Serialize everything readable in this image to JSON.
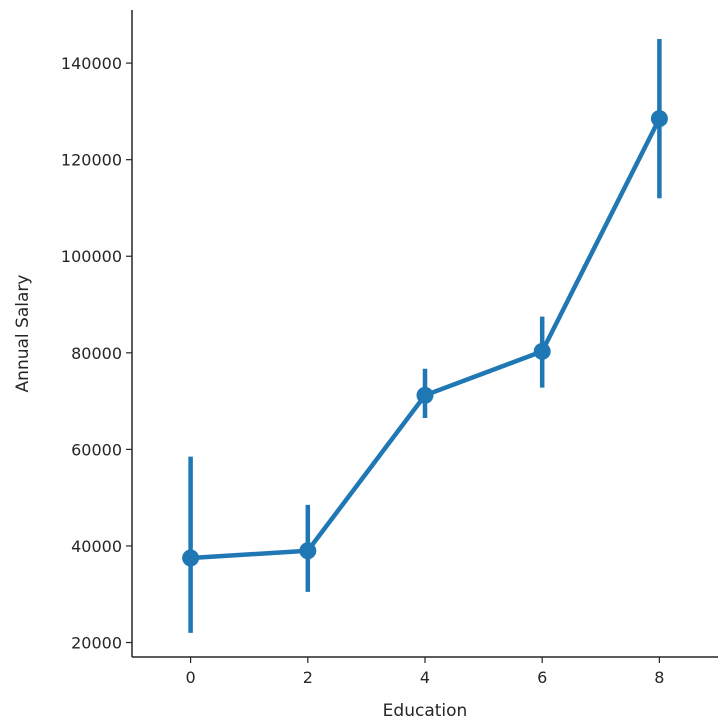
{
  "chart_data": {
    "type": "line",
    "xlabel": "Education",
    "ylabel": "Annual Salary",
    "x": [
      0,
      2,
      4,
      6,
      8
    ],
    "series": [
      {
        "values": [
          37500,
          39000,
          71200,
          80300,
          128500
        ],
        "error_low": [
          22000,
          30500,
          66500,
          72800,
          112000
        ],
        "error_high": [
          58500,
          48500,
          76700,
          87500,
          145000
        ]
      }
    ],
    "xlim": [
      -1,
      9
    ],
    "ylim": [
      17000,
      151000
    ],
    "xticks": [
      0,
      2,
      4,
      6,
      8
    ],
    "yticks": [
      20000,
      40000,
      60000,
      80000,
      100000,
      120000,
      140000
    ],
    "xtick_labels": [
      "0",
      "2",
      "4",
      "6",
      "8"
    ],
    "ytick_labels": [
      "20000",
      "40000",
      "60000",
      "80000",
      "100000",
      "120000",
      "140000"
    ],
    "grid": false,
    "color": "#1f77b4",
    "axis_color": "#262626"
  }
}
